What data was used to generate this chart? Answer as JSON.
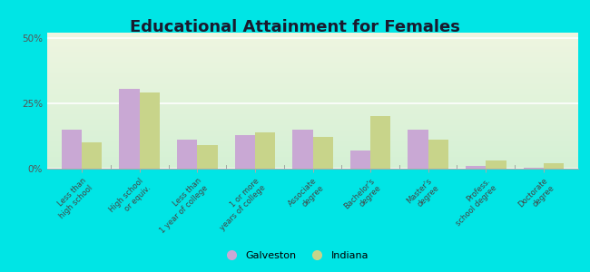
{
  "title": "Educational Attainment for Females",
  "categories": [
    "Less than\nhigh school",
    "High school\nor equiv.",
    "Less than\n1 year of college",
    "1 or more\nyears of college",
    "Associate\ndegree",
    "Bachelor's\ndegree",
    "Master's\ndegree",
    "Profess.\nschool degree",
    "Doctorate\ndegree"
  ],
  "galveston": [
    15.0,
    30.5,
    11.0,
    13.0,
    15.0,
    7.0,
    15.0,
    1.0,
    0.2
  ],
  "indiana": [
    10.0,
    29.0,
    9.0,
    14.0,
    12.0,
    20.0,
    11.0,
    3.0,
    2.0
  ],
  "galveston_color": "#c9a8d4",
  "indiana_color": "#c8d48a",
  "background_top": "#eef5e0",
  "background_bottom": "#d4f0d4",
  "outer_bg": "#00e5e5",
  "title_fontsize": 13,
  "yticks": [
    0,
    25,
    50
  ],
  "ylim": [
    0,
    52
  ],
  "bar_width": 0.35
}
